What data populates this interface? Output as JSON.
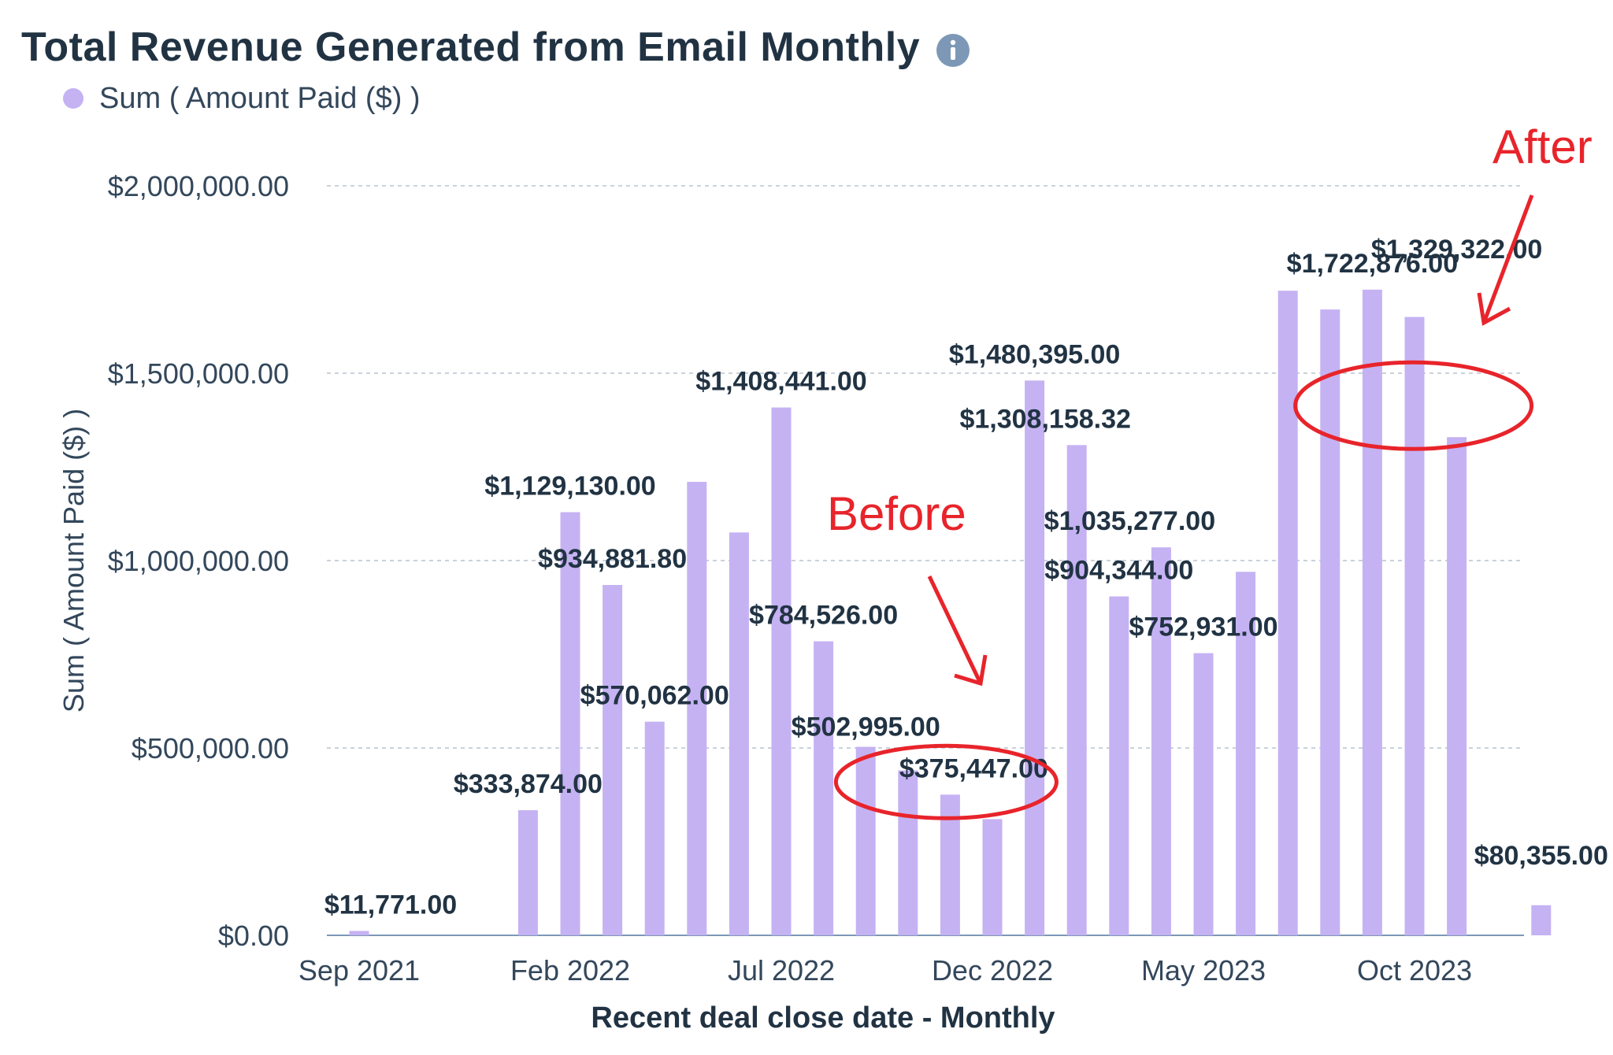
{
  "header": {
    "title": "Total Revenue Generated from Email Monthly",
    "info_icon": "info-icon"
  },
  "legend": {
    "label": "Sum ( Amount Paid ($) )",
    "color": "#c5b2f3"
  },
  "annotations": {
    "before": {
      "text": "Before",
      "color": "#e8242b"
    },
    "after": {
      "text": "After",
      "color": "#e8242b"
    }
  },
  "chart_data": {
    "type": "bar",
    "title": "Total Revenue Generated from Email Monthly",
    "xlabel": "Recent deal close date - Monthly",
    "ylabel": "Sum ( Amount Paid ($) )",
    "ylim": [
      0,
      2000000
    ],
    "yticks": [
      0,
      500000,
      1000000,
      1500000,
      2000000
    ],
    "ytick_labels": [
      "$0.00",
      "$500,000.00",
      "$1,000,000.00",
      "$1,500,000.00",
      "$2,000,000.00"
    ],
    "xtick_labels": [
      "Sep 2021",
      "Feb 2022",
      "Jul 2022",
      "Dec 2022",
      "May 2023",
      "Oct 2023"
    ],
    "xtick_categories": [
      "Sep 2021",
      "Feb 2022",
      "Jul 2022",
      "Dec 2022",
      "May 2023",
      "Oct 2023"
    ],
    "categories": [
      "Sep 2021",
      "Oct 2021",
      "Nov 2021",
      "Dec 2021",
      "Jan 2022",
      "Feb 2022",
      "Mar 2022",
      "Apr 2022",
      "May 2022",
      "Jun 2022",
      "Jul 2022",
      "Aug 2022",
      "Sep 2022",
      "Oct 2022",
      "Nov 2022",
      "Dec 2022",
      "Jan 2023",
      "Feb 2023",
      "Mar 2023",
      "Apr 2023",
      "May 2023",
      "Jun 2023",
      "Jul 2023",
      "Aug 2023",
      "Sep 2023",
      "Oct 2023",
      "Nov 2023",
      "Dec 2023",
      "Jan 2024"
    ],
    "series": [
      {
        "name": "Sum ( Amount Paid ($) )",
        "color": "#c5b2f3",
        "values": [
          11771,
          0,
          0,
          0,
          333874,
          1129130,
          934881.8,
          570062,
          1210000,
          1075000,
          1408441,
          784526,
          502995,
          440000,
          375447,
          310000,
          1480395,
          1308158.32,
          904344,
          1035277,
          752931,
          970000,
          1720000,
          1670000,
          1722876,
          1650000,
          1329322,
          0,
          80355
        ]
      }
    ],
    "data_labels": [
      {
        "text": "$11,771.00",
        "category": "Sep 2021"
      },
      {
        "text": "$333,874.00",
        "category": "Jan 2022"
      },
      {
        "text": "$1,129,130.00",
        "category": "Feb 2022"
      },
      {
        "text": "$934,881.80",
        "category": "Mar 2022"
      },
      {
        "text": "$570,062.00",
        "category": "Apr 2022"
      },
      {
        "text": "$1,408,441.00",
        "category": "Jul 2022"
      },
      {
        "text": "$784,526.00",
        "category": "Aug 2022"
      },
      {
        "text": "$502,995.00",
        "category": "Sep 2022"
      },
      {
        "text": "$375,447.00",
        "category": "Nov 2022"
      },
      {
        "text": "$1,480,395.00",
        "category": "Jan 2023"
      },
      {
        "text": "$1,308,158.32",
        "category": "Feb 2023"
      },
      {
        "text": "$904,344.00",
        "category": "Mar 2023"
      },
      {
        "text": "$1,035,277.00",
        "category": "Apr 2023"
      },
      {
        "text": "$752,931.00",
        "category": "May 2023"
      },
      {
        "text": "$1,722,876.00",
        "category": "Sep 2023"
      },
      {
        "text": "$1,329,322.00",
        "category": "Nov 2023"
      },
      {
        "text": "$80,355.00",
        "category": "Jan 2024"
      }
    ]
  }
}
